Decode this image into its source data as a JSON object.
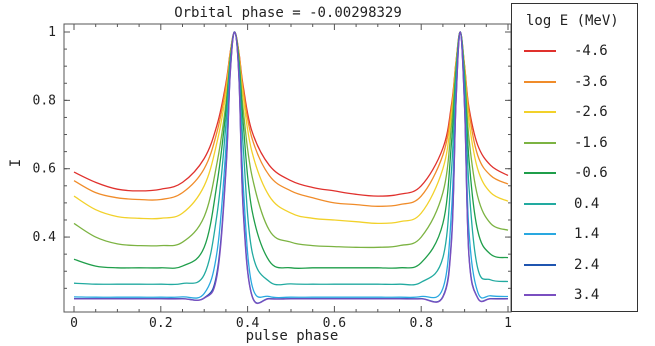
{
  "chart_data": {
    "type": "line",
    "title": "Orbital phase = -0.00298329",
    "xlabel": "pulse phase",
    "ylabel": "I",
    "xlim": [
      0,
      1
    ],
    "ylim": [
      0.21,
      1.0
    ],
    "x_ticks": [
      "0",
      "0.2",
      "0.4",
      "0.6",
      "0.8",
      "1"
    ],
    "y_ticks": [
      "0.4",
      "0.6",
      "0.8",
      "1"
    ],
    "grid": false,
    "legend_placement": "right-outside",
    "legend_title": "log E (MeV)",
    "peaks": [
      0.37,
      0.89
    ],
    "x": [
      0.0,
      0.05,
      0.1,
      0.15,
      0.2,
      0.25,
      0.3,
      0.33,
      0.35,
      0.36,
      0.37,
      0.38,
      0.39,
      0.41,
      0.45,
      0.5,
      0.55,
      0.6,
      0.65,
      0.7,
      0.75,
      0.8,
      0.85,
      0.87,
      0.88,
      0.89,
      0.9,
      0.91,
      0.93,
      0.96,
      1.0
    ],
    "series": [
      {
        "name": "-4.6",
        "color": "#e0312d",
        "values": [
          0.59,
          0.56,
          0.54,
          0.535,
          0.54,
          0.56,
          0.63,
          0.73,
          0.85,
          0.94,
          1.0,
          0.94,
          0.84,
          0.71,
          0.61,
          0.565,
          0.545,
          0.535,
          0.525,
          0.52,
          0.525,
          0.55,
          0.66,
          0.79,
          0.91,
          1.0,
          0.9,
          0.78,
          0.67,
          0.61,
          0.58
        ]
      },
      {
        "name": "-3.6",
        "color": "#f08c2a",
        "values": [
          0.565,
          0.53,
          0.515,
          0.51,
          0.51,
          0.53,
          0.6,
          0.71,
          0.84,
          0.94,
          1.0,
          0.94,
          0.83,
          0.69,
          0.58,
          0.535,
          0.515,
          0.5,
          0.495,
          0.49,
          0.495,
          0.52,
          0.64,
          0.78,
          0.91,
          1.0,
          0.9,
          0.77,
          0.64,
          0.58,
          0.555
        ]
      },
      {
        "name": "-2.6",
        "color": "#f2d12a",
        "values": [
          0.52,
          0.48,
          0.46,
          0.455,
          0.455,
          0.47,
          0.55,
          0.68,
          0.82,
          0.93,
          1.0,
          0.93,
          0.81,
          0.65,
          0.52,
          0.47,
          0.455,
          0.45,
          0.445,
          0.44,
          0.445,
          0.47,
          0.6,
          0.76,
          0.9,
          1.0,
          0.89,
          0.74,
          0.6,
          0.53,
          0.505
        ]
      },
      {
        "name": "-1.6",
        "color": "#7cb342",
        "values": [
          0.44,
          0.4,
          0.38,
          0.375,
          0.375,
          0.385,
          0.46,
          0.62,
          0.79,
          0.92,
          1.0,
          0.92,
          0.77,
          0.58,
          0.42,
          0.385,
          0.375,
          0.372,
          0.37,
          0.37,
          0.375,
          0.4,
          0.53,
          0.73,
          0.89,
          1.0,
          0.88,
          0.69,
          0.52,
          0.44,
          0.42
        ]
      },
      {
        "name": "-0.6",
        "color": "#1f9e4a",
        "values": [
          0.335,
          0.315,
          0.31,
          0.31,
          0.31,
          0.315,
          0.37,
          0.56,
          0.77,
          0.92,
          1.0,
          0.92,
          0.73,
          0.48,
          0.33,
          0.31,
          0.31,
          0.31,
          0.31,
          0.31,
          0.31,
          0.325,
          0.44,
          0.68,
          0.88,
          1.0,
          0.87,
          0.63,
          0.42,
          0.35,
          0.34
        ]
      },
      {
        "name": "0.4",
        "color": "#22aaa0",
        "values": [
          0.265,
          0.262,
          0.262,
          0.262,
          0.262,
          0.264,
          0.29,
          0.47,
          0.73,
          0.91,
          1.0,
          0.9,
          0.66,
          0.36,
          0.27,
          0.263,
          0.262,
          0.262,
          0.262,
          0.262,
          0.262,
          0.268,
          0.34,
          0.6,
          0.86,
          1.0,
          0.85,
          0.55,
          0.31,
          0.275,
          0.27
        ]
      },
      {
        "name": "1.4",
        "color": "#29a8e0",
        "values": [
          0.225,
          0.224,
          0.224,
          0.224,
          0.224,
          0.225,
          0.235,
          0.36,
          0.66,
          0.89,
          1.0,
          0.88,
          0.55,
          0.26,
          0.226,
          0.224,
          0.224,
          0.224,
          0.224,
          0.224,
          0.224,
          0.226,
          0.25,
          0.48,
          0.82,
          1.0,
          0.8,
          0.42,
          0.24,
          0.228,
          0.226
        ]
      },
      {
        "name": "2.4",
        "color": "#1f55b0",
        "values": [
          0.22,
          0.22,
          0.22,
          0.22,
          0.22,
          0.22,
          0.222,
          0.3,
          0.6,
          0.88,
          1.0,
          0.87,
          0.48,
          0.23,
          0.22,
          0.22,
          0.22,
          0.22,
          0.22,
          0.22,
          0.22,
          0.22,
          0.226,
          0.4,
          0.79,
          1.0,
          0.78,
          0.35,
          0.223,
          0.22,
          0.22
        ]
      },
      {
        "name": "3.4",
        "color": "#7a4fc0",
        "values": [
          0.219,
          0.219,
          0.219,
          0.219,
          0.219,
          0.219,
          0.221,
          0.29,
          0.59,
          0.875,
          1.0,
          0.865,
          0.47,
          0.228,
          0.219,
          0.219,
          0.219,
          0.219,
          0.219,
          0.219,
          0.219,
          0.219,
          0.224,
          0.39,
          0.785,
          1.0,
          0.775,
          0.345,
          0.222,
          0.219,
          0.219
        ]
      }
    ]
  }
}
